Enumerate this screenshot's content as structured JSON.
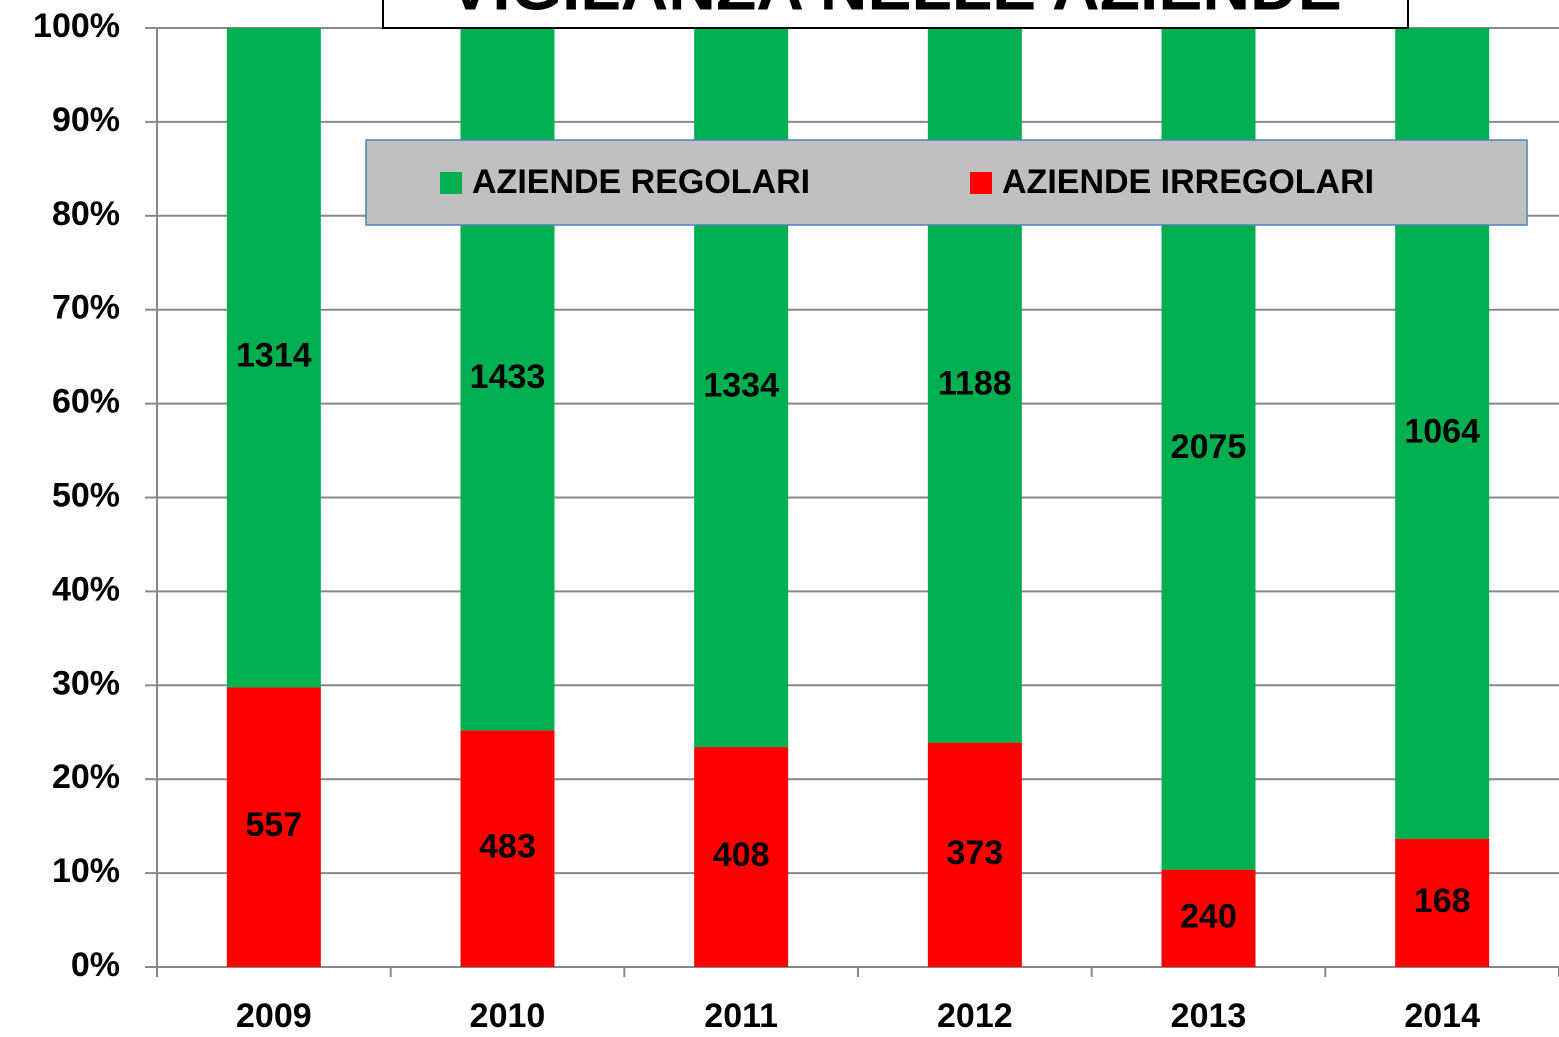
{
  "chart_data": {
    "type": "bar",
    "stacking": "percent",
    "title": "VIGILANZA NELLE AZIENDE",
    "categories": [
      "2009",
      "2010",
      "2011",
      "2012",
      "2013",
      "2014"
    ],
    "series": [
      {
        "name": "AZIENDE IRREGOLARI",
        "color": "#ff0000",
        "values": [
          557,
          483,
          408,
          373,
          240,
          168
        ]
      },
      {
        "name": "AZIENDE REGOLARI",
        "color": "#00b050",
        "values": [
          1314,
          1433,
          1334,
          1188,
          2075,
          1064
        ]
      }
    ],
    "ylim": [
      0,
      100
    ],
    "yticks": [
      {
        "value": 0,
        "label": "0%"
      },
      {
        "value": 10,
        "label": "10%"
      },
      {
        "value": 20,
        "label": "20%"
      },
      {
        "value": 30,
        "label": "30%"
      },
      {
        "value": 40,
        "label": "40%"
      },
      {
        "value": 50,
        "label": "50%"
      },
      {
        "value": 60,
        "label": "60%"
      },
      {
        "value": 70,
        "label": "70%"
      },
      {
        "value": 80,
        "label": "80%"
      },
      {
        "value": 90,
        "label": "90%"
      },
      {
        "value": 100,
        "label": "100%"
      }
    ],
    "grid": true
  }
}
